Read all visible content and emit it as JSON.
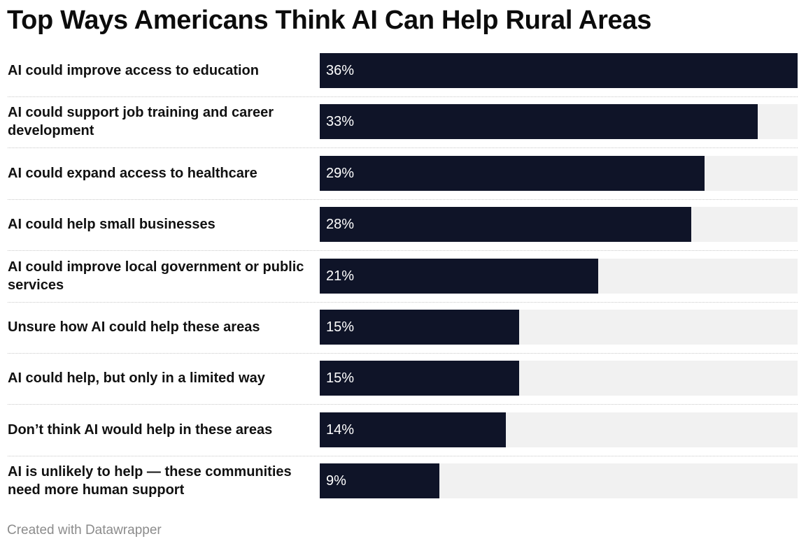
{
  "chart_data": {
    "type": "bar",
    "orientation": "horizontal",
    "title": "Top Ways Americans Think AI Can Help Rural Areas",
    "categories": [
      "AI could improve access to education",
      "AI could support job training and career development",
      "AI could expand access to healthcare",
      "AI could help small businesses",
      "AI could improve local government or public services",
      "Unsure how AI could help these areas",
      "AI could help, but only in a limited way",
      "Don’t think AI would help in these areas",
      "AI is unlikely to help — these communities need more human support"
    ],
    "values": [
      36,
      33,
      29,
      28,
      21,
      15,
      15,
      14,
      9
    ],
    "value_labels": [
      "36%",
      "33%",
      "29%",
      "28%",
      "21%",
      "15%",
      "15%",
      "14%",
      "9%"
    ],
    "xlim": [
      0,
      36
    ],
    "grid": false,
    "legend": "none",
    "bar_color": "#0f1428",
    "track_color": "#f1f1f1",
    "value_label_color": "#ffffff"
  },
  "footer": "Created with Datawrapper"
}
